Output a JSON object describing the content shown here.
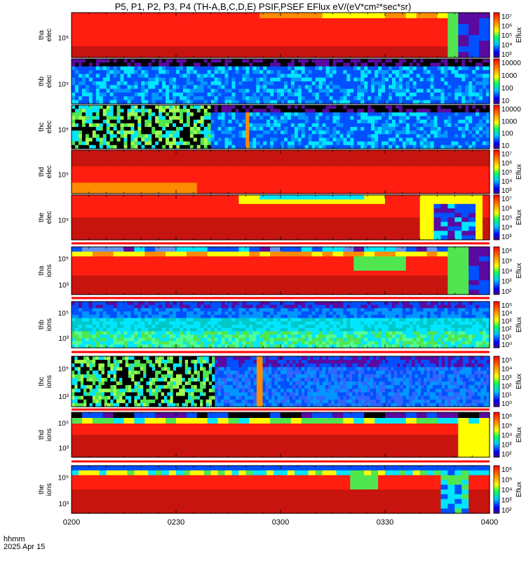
{
  "chart_data": {
    "type": "heatmap",
    "title": "P5, P1, P2, P3, P4 (TH-A,B,C,D,E) PSIF,PSEF EFlux eV/(eV*cm²*sec*sr)",
    "x_ticks": [
      "0200",
      "0230",
      "0300",
      "0330",
      "0400"
    ],
    "xlim": [
      "0200",
      "0400"
    ],
    "xlabel_line1": "hhmm",
    "xlabel_line2": "2025 Apr 15",
    "panels": [
      {
        "ylabel1": "tha",
        "ylabel2": "elec",
        "ytick": "10⁵",
        "cbar_ticks": [
          "10⁷",
          "10⁶",
          "10⁵",
          "10⁴",
          "10³"
        ],
        "cbar_label": "Eflux",
        "cbar_style": "exp"
      },
      {
        "ylabel1": "thb",
        "ylabel2": "elec",
        "ytick": "10⁵",
        "cbar_ticks": [
          "10000",
          "1000",
          "100",
          "10"
        ],
        "cbar_label": "",
        "cbar_style": "int"
      },
      {
        "ylabel1": "thc",
        "ylabel2": "elec",
        "ytick": "10⁵",
        "cbar_ticks": [
          "10000",
          "1000",
          "100",
          "10"
        ],
        "cbar_label": "",
        "cbar_style": "int"
      },
      {
        "ylabel1": "thd",
        "ylabel2": "elec",
        "ytick": "10⁵",
        "cbar_ticks": [
          "10⁷",
          "10⁶",
          "10⁵",
          "10⁴",
          "10³"
        ],
        "cbar_label": "Eflux",
        "cbar_style": "exp"
      },
      {
        "ylabel1": "the",
        "ylabel2": "elec",
        "ytick": "10⁵",
        "cbar_ticks": [
          "10⁷",
          "10⁶",
          "10⁵",
          "10⁴",
          "10³"
        ],
        "cbar_label": "Eflux",
        "cbar_style": "exp"
      },
      {
        "ylabel1": "tha",
        "ylabel2": "ions",
        "ytick": "10⁵",
        "ytick2": "10³",
        "cbar_ticks": [
          "10⁶",
          "10⁵",
          "10⁴",
          "10³",
          "10²"
        ],
        "cbar_label": "Eflux",
        "cbar_style": "exp"
      },
      {
        "ylabel1": "thb",
        "ylabel2": "ions",
        "ytick": "10⁵",
        "ytick2": "10³",
        "cbar_ticks": [
          "10⁵",
          "10⁴",
          "10³",
          "10²",
          "10¹",
          "10⁰"
        ],
        "cbar_label": "Eflux",
        "cbar_style": "exp"
      },
      {
        "ylabel1": "thc",
        "ylabel2": "ions",
        "ytick": "10⁵",
        "ytick2": "10³",
        "cbar_ticks": [
          "10⁵",
          "10⁴",
          "10³",
          "10²",
          "10¹",
          "10⁰"
        ],
        "cbar_label": "Eflux",
        "cbar_style": "exp"
      },
      {
        "ylabel1": "thd",
        "ylabel2": "ions",
        "ytick": "10⁵",
        "ytick2": "10³",
        "cbar_ticks": [
          "10⁶",
          "10⁵",
          "10⁴",
          "10³",
          "10²"
        ],
        "cbar_label": "Eflux",
        "cbar_style": "exp"
      },
      {
        "ylabel1": "the",
        "ylabel2": "ions",
        "ytick": "10⁵",
        "ytick2": "10³",
        "cbar_ticks": [
          "10⁶",
          "10⁵",
          "10⁴",
          "10³",
          "10²"
        ],
        "cbar_label": "Eflux",
        "cbar_style": "exp"
      }
    ]
  },
  "colors": {
    "dark_red": "#c8140f",
    "red": "#ff1e0f",
    "orange": "#ff8c00",
    "yellow": "#ffff00",
    "green": "#50e650",
    "cyan": "#00e6ff",
    "blue": "#0050ff",
    "purple": "#5a0aa0",
    "black": "#000000"
  }
}
